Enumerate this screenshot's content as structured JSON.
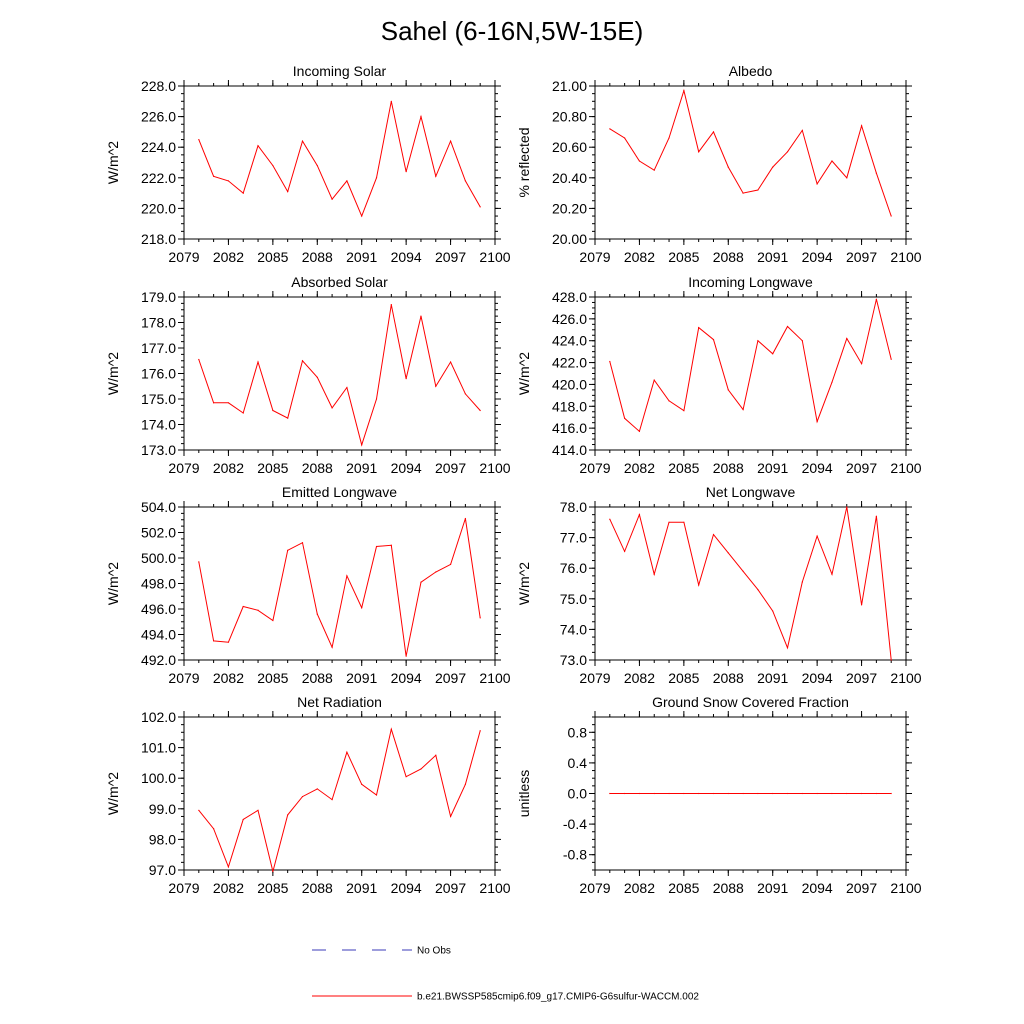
{
  "figure": {
    "title": "Sahel (6-16N,5W-15E)"
  },
  "legend": {
    "entries": [
      {
        "label": "No Obs",
        "color": "#3b3bb8",
        "style": "dashed"
      },
      {
        "label": "b.e21.BWSSP585cmip6.f09_g17.CMIP6-G6sulfur-WACCM.002",
        "color": "#ff0000",
        "style": "solid"
      }
    ]
  },
  "chart_data": [
    {
      "type": "line",
      "title": "Incoming Solar",
      "ylabel": "W/m^2",
      "xlim": [
        2079,
        2100
      ],
      "ylim": [
        218,
        228
      ],
      "x_ticks": [
        "2079",
        "2082",
        "2085",
        "2088",
        "2091",
        "2094",
        "2097",
        "2100"
      ],
      "y_ticks": [
        "218.0",
        "220.0",
        "222.0",
        "224.0",
        "226.0",
        "228.0"
      ],
      "series": [
        {
          "color": "#ff0000",
          "x": [
            2080,
            2081,
            2082,
            2083,
            2084,
            2085,
            2086,
            2087,
            2088,
            2089,
            2090,
            2091,
            2092,
            2093,
            2094,
            2095,
            2096,
            2097,
            2098,
            2099
          ],
          "y": [
            224.5,
            222.1,
            221.8,
            221.0,
            224.1,
            222.8,
            221.1,
            224.4,
            222.8,
            220.6,
            221.8,
            219.5,
            222.0,
            227.0,
            222.4,
            226.0,
            222.1,
            224.4,
            221.8,
            220.1
          ]
        }
      ]
    },
    {
      "type": "line",
      "title": "Albedo",
      "ylabel": "% reflected",
      "xlim": [
        2079,
        2100
      ],
      "ylim": [
        20.0,
        21.0
      ],
      "x_ticks": [
        "2079",
        "2082",
        "2085",
        "2088",
        "2091",
        "2094",
        "2097",
        "2100"
      ],
      "y_ticks": [
        "20.00",
        "20.20",
        "20.40",
        "20.60",
        "20.80",
        "21.00"
      ],
      "series": [
        {
          "color": "#ff0000",
          "x": [
            2080,
            2081,
            2082,
            2083,
            2084,
            2085,
            2086,
            2087,
            2088,
            2089,
            2090,
            2091,
            2092,
            2093,
            2094,
            2095,
            2096,
            2097,
            2098,
            2099
          ],
          "y": [
            20.72,
            20.66,
            20.51,
            20.45,
            20.66,
            20.97,
            20.57,
            20.7,
            20.47,
            20.3,
            20.32,
            20.47,
            20.57,
            20.71,
            20.36,
            20.51,
            20.4,
            20.74,
            20.43,
            20.15
          ]
        }
      ]
    },
    {
      "type": "line",
      "title": "Absorbed Solar",
      "ylabel": "W/m^2",
      "xlim": [
        2079,
        2100
      ],
      "ylim": [
        173,
        179
      ],
      "x_ticks": [
        "2079",
        "2082",
        "2085",
        "2088",
        "2091",
        "2094",
        "2097",
        "2100"
      ],
      "y_ticks": [
        "173.0",
        "174.0",
        "175.0",
        "176.0",
        "177.0",
        "178.0",
        "179.0"
      ],
      "series": [
        {
          "color": "#ff0000",
          "x": [
            2080,
            2081,
            2082,
            2083,
            2084,
            2085,
            2086,
            2087,
            2088,
            2089,
            2090,
            2091,
            2092,
            2093,
            2094,
            2095,
            2096,
            2097,
            2098,
            2099
          ],
          "y": [
            176.55,
            174.85,
            174.85,
            174.45,
            176.45,
            174.55,
            174.25,
            176.5,
            175.85,
            174.65,
            175.45,
            173.2,
            175.0,
            178.7,
            175.8,
            178.25,
            175.5,
            176.45,
            175.2,
            174.55
          ]
        }
      ]
    },
    {
      "type": "line",
      "title": "Incoming Longwave",
      "ylabel": "W/m^2",
      "xlim": [
        2079,
        2100
      ],
      "ylim": [
        414,
        428
      ],
      "x_ticks": [
        "2079",
        "2082",
        "2085",
        "2088",
        "2091",
        "2094",
        "2097",
        "2100"
      ],
      "y_ticks": [
        "414.0",
        "416.0",
        "418.0",
        "420.0",
        "422.0",
        "424.0",
        "426.0",
        "428.0"
      ],
      "series": [
        {
          "color": "#ff0000",
          "x": [
            2080,
            2081,
            2082,
            2083,
            2084,
            2085,
            2086,
            2087,
            2088,
            2089,
            2090,
            2091,
            2092,
            2093,
            2094,
            2095,
            2096,
            2097,
            2098,
            2099
          ],
          "y": [
            422.1,
            416.9,
            415.7,
            420.4,
            418.5,
            417.6,
            425.2,
            424.1,
            419.5,
            417.7,
            424.0,
            422.8,
            425.3,
            424.0,
            416.6,
            420.2,
            424.2,
            421.9,
            427.8,
            422.3
          ]
        }
      ]
    },
    {
      "type": "line",
      "title": "Emitted Longwave",
      "ylabel": "W/m^2",
      "xlim": [
        2079,
        2100
      ],
      "ylim": [
        492,
        504
      ],
      "x_ticks": [
        "2079",
        "2082",
        "2085",
        "2088",
        "2091",
        "2094",
        "2097",
        "2100"
      ],
      "y_ticks": [
        "492.0",
        "494.0",
        "496.0",
        "498.0",
        "500.0",
        "502.0",
        "504.0"
      ],
      "series": [
        {
          "color": "#ff0000",
          "x": [
            2080,
            2081,
            2082,
            2083,
            2084,
            2085,
            2086,
            2087,
            2088,
            2089,
            2090,
            2091,
            2092,
            2093,
            2094,
            2095,
            2096,
            2097,
            2098,
            2099
          ],
          "y": [
            499.7,
            493.5,
            493.4,
            496.2,
            495.9,
            495.1,
            500.6,
            501.2,
            495.6,
            493.0,
            498.6,
            496.1,
            500.9,
            501.0,
            492.3,
            498.1,
            498.9,
            499.5,
            503.1,
            495.3
          ]
        }
      ]
    },
    {
      "type": "line",
      "title": "Net Longwave",
      "ylabel": "W/m^2",
      "xlim": [
        2079,
        2100
      ],
      "ylim": [
        73,
        78
      ],
      "x_ticks": [
        "2079",
        "2082",
        "2085",
        "2088",
        "2091",
        "2094",
        "2097",
        "2100"
      ],
      "y_ticks": [
        "73.0",
        "74.0",
        "75.0",
        "76.0",
        "77.0",
        "78.0"
      ],
      "series": [
        {
          "color": "#ff0000",
          "x": [
            2080,
            2081,
            2082,
            2083,
            2084,
            2085,
            2086,
            2087,
            2088,
            2089,
            2090,
            2091,
            2092,
            2093,
            2094,
            2095,
            2096,
            2097,
            2098,
            2099
          ],
          "y": [
            77.6,
            76.55,
            77.75,
            75.8,
            77.5,
            77.5,
            75.45,
            77.1,
            76.5,
            75.9,
            75.3,
            74.6,
            73.4,
            75.55,
            77.05,
            75.8,
            78.0,
            74.8,
            77.7,
            73.0
          ]
        }
      ]
    },
    {
      "type": "line",
      "title": "Net Radiation",
      "ylabel": "W/m^2",
      "xlim": [
        2079,
        2100
      ],
      "ylim": [
        97,
        102
      ],
      "x_ticks": [
        "2079",
        "2082",
        "2085",
        "2088",
        "2091",
        "2094",
        "2097",
        "2100"
      ],
      "y_ticks": [
        "97.0",
        "98.0",
        "99.0",
        "100.0",
        "101.0",
        "102.0"
      ],
      "series": [
        {
          "color": "#ff0000",
          "x": [
            2080,
            2081,
            2082,
            2083,
            2084,
            2085,
            2086,
            2087,
            2088,
            2089,
            2090,
            2091,
            2092,
            2093,
            2094,
            2095,
            2096,
            2097,
            2098,
            2099
          ],
          "y": [
            98.95,
            98.35,
            97.1,
            98.65,
            98.95,
            96.95,
            98.8,
            99.4,
            99.65,
            99.3,
            100.85,
            99.8,
            99.45,
            101.6,
            100.05,
            100.3,
            100.75,
            98.75,
            99.8,
            101.55
          ]
        }
      ]
    },
    {
      "type": "line",
      "title": "Ground Snow Covered Fraction",
      "ylabel": "unitless",
      "xlim": [
        2079,
        2100
      ],
      "ylim": [
        -1.0,
        1.0
      ],
      "x_ticks": [
        "2079",
        "2082",
        "2085",
        "2088",
        "2091",
        "2094",
        "2097",
        "2100"
      ],
      "y_ticks": [
        "-0.8",
        "-0.4",
        "0.0",
        "0.4",
        "0.8"
      ],
      "series": [
        {
          "color": "#ff0000",
          "x": [
            2080,
            2081,
            2082,
            2083,
            2084,
            2085,
            2086,
            2087,
            2088,
            2089,
            2090,
            2091,
            2092,
            2093,
            2094,
            2095,
            2096,
            2097,
            2098,
            2099
          ],
          "y": [
            0,
            0,
            0,
            0,
            0,
            0,
            0,
            0,
            0,
            0,
            0,
            0,
            0,
            0,
            0,
            0,
            0,
            0,
            0,
            0
          ]
        }
      ]
    }
  ]
}
